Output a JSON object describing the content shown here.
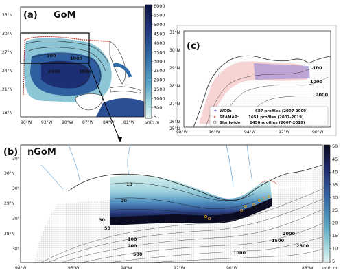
{
  "panel_a": {
    "label": "(a)",
    "name": "GoM",
    "lat_ticks": [
      "33°N",
      "30°N",
      "27°N",
      "24°N",
      "21°N",
      "18°N"
    ],
    "lon_ticks": [
      "96°W",
      "93°W",
      "90°W",
      "87°W",
      "84°W",
      "81°W"
    ],
    "contour_labels": [
      "100",
      "1000",
      "2000",
      "3000"
    ],
    "colorbar": {
      "ticks": [
        "6000",
        "5500",
        "5000",
        "4500",
        "4000",
        "3500",
        "3000",
        "2500",
        "2000",
        "1500",
        "1000",
        "500",
        "5"
      ],
      "unit": "unit: m"
    }
  },
  "panel_b": {
    "label": "(b)",
    "name": "nGoM",
    "lat_ticks": [
      "30'",
      "30°N",
      "30'",
      "29°N",
      "30'",
      "28°N",
      "30'"
    ],
    "lon_ticks": [
      "98°W",
      "96°W",
      "94°W",
      "92°W",
      "90°W",
      "88°W"
    ],
    "contour_labels": [
      "10",
      "20",
      "30",
      "50",
      "100",
      "200",
      "500",
      "1000",
      "1500",
      "2000",
      "2500"
    ],
    "colorbar": {
      "ticks": [
        "50",
        "45",
        "40",
        "35",
        "30",
        "25",
        "20",
        "15",
        "10",
        "5"
      ],
      "unit": "unit: m"
    }
  },
  "panel_c": {
    "label": "(c)",
    "lat_ticks": [
      "31°N",
      "30°N",
      "29°N",
      "28°N",
      "27°N",
      "26°N",
      "25°N"
    ],
    "lon_ticks": [
      "98°W",
      "96°W",
      "94°W",
      "92°W",
      "90°W"
    ],
    "contour_labels": [
      "100",
      "1000",
      "2000"
    ],
    "legend": [
      {
        "name": "WOD:",
        "count": "687 profiles (2007-2009)",
        "marker": "plus",
        "color": "#5a3fb8"
      },
      {
        "name": "SEAMAP:",
        "count": "1651 profiles (2007-2019)",
        "marker": "dot",
        "color": "#e88080"
      },
      {
        "name": "Shelfwide:",
        "count": "1450 profiles (2007-2019)",
        "marker": "circle",
        "color": "#444444"
      }
    ]
  }
}
